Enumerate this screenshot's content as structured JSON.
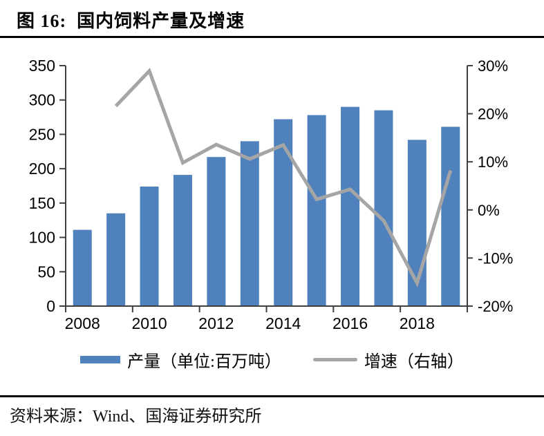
{
  "figure": {
    "title": "图 16:  国内饲料产量及增速",
    "source": "资料来源：Wind、国海证券研究所"
  },
  "legend": {
    "production_label": "产量（单位:百万吨）",
    "growth_label": "增速（右轴）"
  },
  "colors": {
    "bar": "#4f81bd",
    "line": "#a5a5a5",
    "axis": "#3f3f3f",
    "text": "#000000"
  },
  "chart_data": {
    "type": "bar",
    "title": "国内饲料产量及增速",
    "categories": [
      "2008",
      "2009",
      "2010",
      "2011",
      "2012",
      "2013",
      "2014",
      "2015",
      "2016",
      "2017",
      "2018",
      "2019"
    ],
    "series": [
      {
        "name": "产量（单位:百万吨）",
        "type": "bar",
        "axis": "left",
        "color": "#4f81bd",
        "values": [
          111,
          135,
          174,
          191,
          217,
          240,
          272,
          278,
          290,
          285,
          242,
          261
        ]
      },
      {
        "name": "增速（右轴）",
        "type": "line",
        "axis": "right",
        "color": "#a5a5a5",
        "values": [
          null,
          21.6,
          28.9,
          9.8,
          13.6,
          10.6,
          13.5,
          2.2,
          4.3,
          -2.2,
          -15.2,
          8.2
        ]
      }
    ],
    "left_axis": {
      "min": 0,
      "max": 350,
      "tick_step": 50,
      "tick_labels_top_to_bottom": [
        "350",
        "300",
        "250",
        "200",
        "150",
        "100",
        "50",
        "0"
      ]
    },
    "right_axis": {
      "min": -20,
      "max": 30,
      "tick_step": 10,
      "unit": "%",
      "tick_labels_top_to_bottom": [
        "30%",
        "20%",
        "10%",
        "0%",
        "-10%",
        "-20%"
      ]
    },
    "x_tick_labels": [
      "2008",
      "2010",
      "2012",
      "2014",
      "2016",
      "2018"
    ],
    "grid": false,
    "legend_position": "bottom"
  }
}
